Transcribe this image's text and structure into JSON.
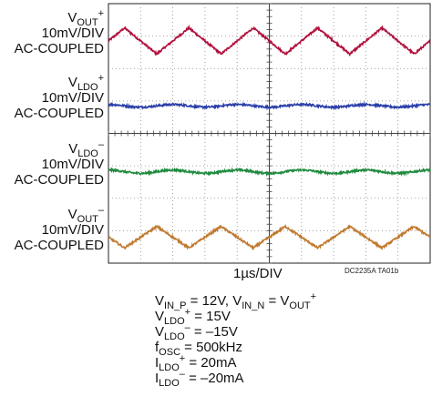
{
  "chart_data": {
    "type": "line",
    "title": "",
    "x_axis": {
      "divisions": 10,
      "label": "1µs/DIV"
    },
    "y_axis": {
      "divisions": 8
    },
    "grid": true,
    "series": [
      {
        "name": "VOUT+",
        "label": [
          "V",
          "OUT",
          "+"
        ],
        "scale": "10mV/DIV",
        "coupling": "AC-COUPLED",
        "color": "#b0103c",
        "offset_div": 6.85,
        "amplitude_div": 0.4,
        "shape": "triangle",
        "noise_div": 0.03
      },
      {
        "name": "VLDO+",
        "label": [
          "V",
          "LDO",
          "+"
        ],
        "scale": "10mV/DIV",
        "coupling": "AC-COUPLED",
        "color": "#2a3fa8",
        "offset_div": 4.85,
        "amplitude_div": 0.04,
        "shape": "sine",
        "noise_div": 0.03
      },
      {
        "name": "VLDO−",
        "label": [
          "V",
          "LDO",
          "–"
        ],
        "scale": "10mV/DIV",
        "coupling": "AC-COUPLED",
        "color": "#1f8a3e",
        "offset_div": 2.82,
        "amplitude_div": 0.05,
        "shape": "sine",
        "noise_div": 0.03
      },
      {
        "name": "VOUT−",
        "label": [
          "V",
          "OUT",
          "–"
        ],
        "scale": "10mV/DIV",
        "coupling": "AC-COUPLED",
        "color": "#c07a30",
        "offset_div": 0.8,
        "amplitude_div": 0.33,
        "shape": "triangle_inv",
        "noise_div": 0.03
      }
    ],
    "period_div": 2.0,
    "footnote": "DC2235A TA01b"
  },
  "conditions": [
    {
      "parts": [
        [
          "V"
        ],
        [
          "IN_P",
          "sub"
        ],
        [
          " = 12V, V"
        ],
        [
          "IN_N",
          "sub"
        ],
        [
          " = V"
        ],
        [
          "OUT",
          "sub"
        ],
        [
          "+",
          "sup"
        ]
      ]
    },
    {
      "parts": [
        [
          "V"
        ],
        [
          "LDO",
          "sub"
        ],
        [
          "+",
          "sup"
        ],
        [
          " = 15V"
        ]
      ]
    },
    {
      "parts": [
        [
          "V"
        ],
        [
          "LDO",
          "sub"
        ],
        [
          "–",
          "sup"
        ],
        [
          " = –15V"
        ]
      ]
    },
    {
      "parts": [
        [
          "f"
        ],
        [
          "OSC",
          "sub"
        ],
        [
          " = 500kHz"
        ]
      ]
    },
    {
      "parts": [
        [
          "I"
        ],
        [
          "LDO",
          "sub"
        ],
        [
          "+",
          "sup"
        ],
        [
          " = 20mA"
        ]
      ]
    },
    {
      "parts": [
        [
          "I"
        ],
        [
          "LDO",
          "sub"
        ],
        [
          "–",
          "sup"
        ],
        [
          " = –20mA"
        ]
      ]
    }
  ]
}
